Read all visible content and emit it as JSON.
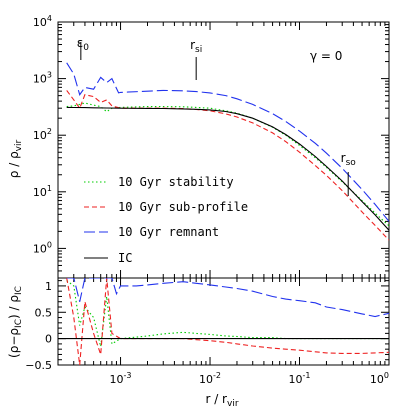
{
  "chart_data": [
    {
      "type": "line",
      "panel": "top",
      "xscale": "log",
      "yscale": "log",
      "xlim": [
        0.0002,
        1.0
      ],
      "ylim": [
        0.3,
        10000
      ],
      "ylabel": "ρ / ρ_vir",
      "xticks": [
        {
          "v": 0.001,
          "base": "10",
          "exp": "-3"
        },
        {
          "v": 0.01,
          "base": "10",
          "exp": "-2"
        },
        {
          "v": 0.1,
          "base": "10",
          "exp": "-1"
        },
        {
          "v": 1,
          "base": "10",
          "exp": "0"
        }
      ],
      "yticks": [
        {
          "v": 1,
          "base": "10",
          "exp": "0"
        },
        {
          "v": 10,
          "base": "10",
          "exp": "1"
        },
        {
          "v": 100,
          "base": "10",
          "exp": "2"
        },
        {
          "v": 1000,
          "base": "10",
          "exp": "3"
        },
        {
          "v": 10000,
          "base": "10",
          "exp": "4"
        }
      ],
      "annotation_gamma": "γ = 0",
      "markers": [
        {
          "label": "ε",
          "sub": "0",
          "x": 0.00036
        },
        {
          "label": "r",
          "sub": "si",
          "x": 0.007
        },
        {
          "label": "r",
          "sub": "so",
          "x": 0.35
        }
      ],
      "series": [
        {
          "name": "10 Gyr stability",
          "color": "#00cc00",
          "dash": "dotted",
          "x": [
            0.00025,
            0.0003,
            0.00035,
            0.0004,
            0.0005,
            0.0006,
            0.0007,
            0.0008,
            0.001,
            0.002,
            0.003,
            0.005,
            0.007,
            0.01,
            0.015,
            0.02,
            0.03,
            0.05,
            0.07,
            0.1,
            0.15,
            0.2,
            0.3,
            0.5,
            0.7,
            1.0
          ],
          "y": [
            320,
            330,
            350,
            370,
            340,
            320,
            260,
            300,
            310,
            320,
            320,
            318,
            310,
            300,
            270,
            245,
            200,
            138,
            100,
            66,
            40,
            27,
            15,
            7,
            4.2,
            2.5
          ]
        },
        {
          "name": "10 Gyr sub-profile",
          "color": "#ee2222",
          "dash": "dashed",
          "x": [
            0.00025,
            0.0003,
            0.00035,
            0.0004,
            0.0005,
            0.0006,
            0.0007,
            0.0008,
            0.001,
            0.002,
            0.003,
            0.005,
            0.007,
            0.01,
            0.015,
            0.02,
            0.03,
            0.05,
            0.07,
            0.1,
            0.15,
            0.2,
            0.3,
            0.5,
            0.7,
            1.0
          ],
          "y": [
            620,
            420,
            300,
            520,
            480,
            380,
            420,
            330,
            300,
            300,
            300,
            295,
            285,
            270,
            238,
            210,
            165,
            110,
            77,
            50,
            29,
            19.5,
            10.5,
            4.4,
            2.55,
            1.4
          ]
        },
        {
          "name": "10 Gyr remnant",
          "color": "#2233ee",
          "dash": "longdash",
          "x": [
            0.00025,
            0.0003,
            0.00035,
            0.0004,
            0.0005,
            0.0006,
            0.0007,
            0.0008,
            0.00095,
            0.001,
            0.002,
            0.003,
            0.005,
            0.007,
            0.01,
            0.015,
            0.02,
            0.03,
            0.05,
            0.07,
            0.1,
            0.15,
            0.2,
            0.3,
            0.5,
            0.7,
            1.0
          ],
          "y": [
            1900,
            1200,
            520,
            700,
            650,
            1050,
            850,
            1000,
            560,
            570,
            600,
            620,
            610,
            590,
            560,
            500,
            440,
            350,
            240,
            175,
            118,
            72,
            48,
            26,
            11,
            6,
            3
          ]
        },
        {
          "name": "IC",
          "color": "#000000",
          "dash": "solid",
          "x": [
            0.00025,
            0.0003,
            0.0004,
            0.0005,
            0.0007,
            0.001,
            0.002,
            0.003,
            0.005,
            0.007,
            0.01,
            0.015,
            0.02,
            0.03,
            0.05,
            0.07,
            0.1,
            0.15,
            0.2,
            0.3,
            0.5,
            0.7,
            1.0
          ],
          "y": [
            310,
            308,
            307,
            305,
            303,
            300,
            298,
            296,
            292,
            287,
            280,
            262,
            240,
            200,
            140,
            103,
            70,
            42,
            28,
            15.5,
            6.7,
            3.9,
            2.1
          ]
        }
      ]
    },
    {
      "type": "line",
      "panel": "bottom",
      "xscale": "log",
      "xlim": [
        0.0002,
        1.0
      ],
      "ylim": [
        -0.5,
        1.15
      ],
      "xlabel": "r / r_vir",
      "ylabel": "(ρ−ρ_IC) / ρ_IC",
      "yticks": [
        -0.5,
        0,
        0.5,
        1
      ],
      "ytick_labels": [
        "−0.5",
        "0",
        "0.5",
        "1"
      ],
      "series": [
        {
          "name": "10 Gyr stability",
          "color": "#00cc00",
          "dash": "dotted",
          "x": [
            0.00025,
            0.0003,
            0.00035,
            0.0004,
            0.0005,
            0.0006,
            0.0007,
            0.0008,
            0.001,
            0.002,
            0.003,
            0.005,
            0.007,
            0.01,
            0.015,
            0.02,
            0.03,
            0.05,
            0.07,
            0.1,
            0.15,
            0.2,
            0.3,
            0.5,
            0.7,
            1.0
          ],
          "y": [
            1.1,
            1.0,
            0.25,
            0.6,
            0.4,
            -0.15,
            0.8,
            -0.1,
            0.0,
            0.05,
            0.09,
            0.12,
            0.1,
            0.08,
            0.05,
            0.04,
            0.02,
            0.02,
            0.0,
            0.0,
            0.0,
            0.0,
            0.0,
            0.0,
            0.0,
            0.0
          ]
        },
        {
          "name": "10 Gyr sub-profile",
          "color": "#ee2222",
          "dash": "dashed",
          "x": [
            0.00025,
            0.0003,
            0.00035,
            0.0004,
            0.0005,
            0.0006,
            0.0007,
            0.0008,
            0.001,
            0.002,
            0.003,
            0.005,
            0.007,
            0.01,
            0.015,
            0.02,
            0.03,
            0.05,
            0.07,
            0.1,
            0.15,
            0.2,
            0.3,
            0.5,
            0.7,
            1.0
          ],
          "y": [
            1.15,
            0.4,
            -0.5,
            0.7,
            0.1,
            -0.3,
            1.15,
            0.1,
            0.0,
            0.0,
            0.0,
            0.0,
            -0.02,
            -0.04,
            -0.07,
            -0.1,
            -0.14,
            -0.18,
            -0.2,
            -0.22,
            -0.25,
            -0.27,
            -0.28,
            -0.28,
            -0.27,
            -0.26
          ]
        },
        {
          "name": "10 Gyr remnant",
          "color": "#2233ee",
          "dash": "longdash",
          "x": [
            0.00025,
            0.0003,
            0.00035,
            0.0004,
            0.0005,
            0.0006,
            0.0007,
            0.0008,
            0.0009,
            0.001,
            0.0015,
            0.002,
            0.003,
            0.005,
            0.007,
            0.01,
            0.015,
            0.02,
            0.03,
            0.05,
            0.07,
            0.1,
            0.15,
            0.2,
            0.3,
            0.5,
            0.7,
            1.0
          ],
          "y": [
            1.15,
            1.15,
            0.7,
            1.15,
            1.15,
            1.15,
            1.15,
            1.15,
            0.85,
            1.0,
            1.0,
            1.02,
            1.05,
            1.08,
            1.05,
            1.02,
            0.98,
            0.95,
            0.9,
            0.8,
            0.75,
            0.72,
            0.68,
            0.6,
            0.55,
            0.47,
            0.42,
            0.48
          ]
        },
        {
          "name": "IC",
          "color": "#000000",
          "dash": "solid",
          "x": [
            0.0002,
            1.0
          ],
          "y": [
            0,
            0
          ]
        }
      ]
    }
  ]
}
